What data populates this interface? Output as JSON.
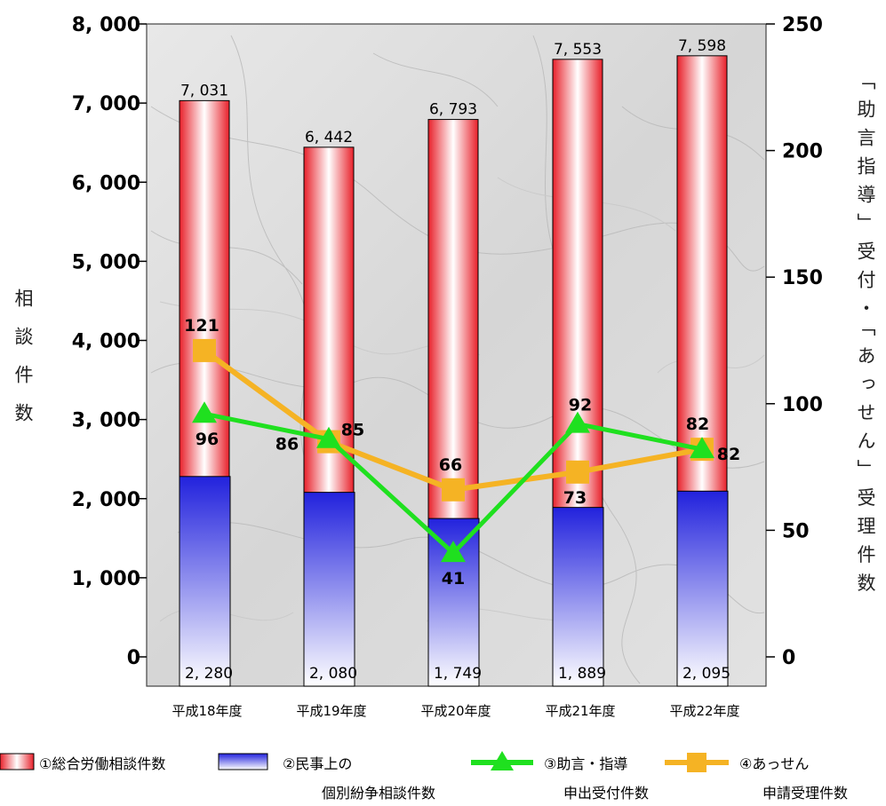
{
  "chart_data": {
    "type": "bar",
    "categories": [
      "平成18年度",
      "平成19年度",
      "平成20年度",
      "平成21年度",
      "平成22年度"
    ],
    "y_left": {
      "label": "相談件数",
      "ylim": [
        0,
        8000
      ],
      "ticks": [
        0,
        1000,
        2000,
        3000,
        4000,
        5000,
        6000,
        7000,
        8000
      ],
      "tick_labels": [
        "0",
        "1, 000",
        "2, 000",
        "3, 000",
        "4, 000",
        "5, 000",
        "6, 000",
        "7, 000",
        "8, 000"
      ]
    },
    "y_right": {
      "label": "「助言指導」受付・「あっせん」受理件数",
      "ylim": [
        0,
        250
      ],
      "ticks": [
        0,
        50,
        100,
        150,
        200,
        250
      ],
      "tick_labels": [
        "0",
        "50",
        "100",
        "150",
        "200",
        "250"
      ]
    },
    "series": [
      {
        "name": "①総合労働相談件数",
        "type": "bar",
        "axis": "left",
        "values": [
          7031,
          6442,
          6793,
          7553,
          7598
        ],
        "labels": [
          "7, 031",
          "6, 442",
          "6, 793",
          "7, 553",
          "7, 598"
        ],
        "color": "#e8202a"
      },
      {
        "name": "②民事上の個別紛争相談件数",
        "type": "bar",
        "axis": "left",
        "values": [
          2280,
          2080,
          1749,
          1889,
          2095
        ],
        "labels": [
          "2, 280",
          "2, 080",
          "1, 749",
          "1, 889",
          "2, 095"
        ],
        "color": "#2b2be0"
      },
      {
        "name": "③助言・指導申出受付件数",
        "type": "line",
        "axis": "right",
        "values": [
          96,
          86,
          41,
          92,
          82
        ],
        "labels": [
          "96",
          "86",
          "41",
          "92",
          "82"
        ],
        "color": "#1fe01f"
      },
      {
        "name": "④あっせん申請受理件数",
        "type": "line",
        "axis": "right",
        "values": [
          121,
          85,
          66,
          73,
          82
        ],
        "labels": [
          "121",
          "85",
          "66",
          "73",
          "82"
        ],
        "color": "#f5b324"
      }
    ]
  },
  "legend": {
    "item1": "①総合労働相談件数",
    "item2_line1": "②民事上の",
    "item2_line2": "個別紛争相談件数",
    "item3_line1": "③助言・指導",
    "item3_line2": "申出受付件数",
    "item4_line1": "④あっせん",
    "item4_line2": "申請受理件数"
  }
}
